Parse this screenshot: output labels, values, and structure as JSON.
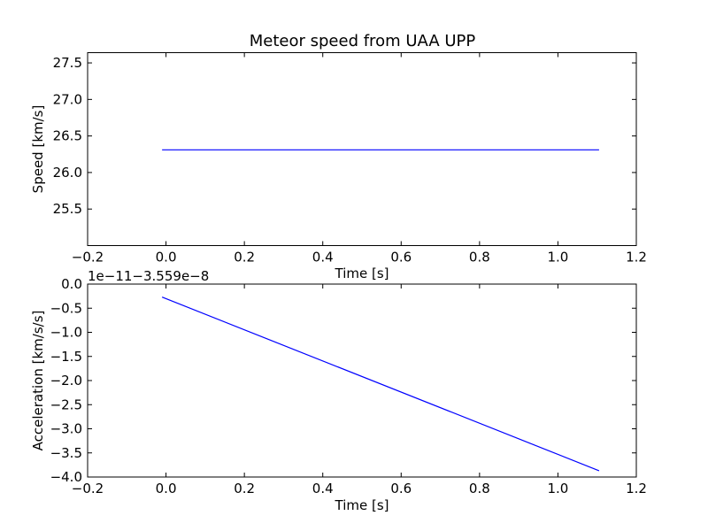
{
  "title": "Meteor speed from  UAA UPP",
  "chart_data": [
    {
      "type": "line",
      "title": "Meteor speed from  UAA UPP",
      "xlabel": "Time [s]",
      "ylabel": "Speed [km/s]",
      "xlim": [
        -0.2,
        1.2
      ],
      "ylim": [
        25.0,
        27.64
      ],
      "xticks": [
        -0.2,
        0.0,
        0.2,
        0.4,
        0.6,
        0.8,
        1.0,
        1.2
      ],
      "xtick_labels": [
        "−0.2",
        "0.0",
        "0.2",
        "0.4",
        "0.6",
        "0.8",
        "1.0",
        "1.2"
      ],
      "yticks": [
        25.5,
        26.0,
        26.5,
        27.0,
        27.5
      ],
      "ytick_labels": [
        "25.5",
        "26.0",
        "26.5",
        "27.0",
        "27.5"
      ],
      "grid": false,
      "series": [
        {
          "color": "#0000ff",
          "x": [
            -0.01,
            1.105
          ],
          "y": [
            26.31,
            26.31
          ]
        }
      ]
    },
    {
      "type": "line",
      "xlabel": "Time [s]",
      "ylabel": "Acceleration [km/s/s]",
      "y_offset_text": "1e−11−3.559e−8",
      "xlim": [
        -0.2,
        1.2
      ],
      "ylim": [
        -4.0,
        0.0
      ],
      "xticks": [
        -0.2,
        0.0,
        0.2,
        0.4,
        0.6,
        0.8,
        1.0,
        1.2
      ],
      "xtick_labels": [
        "−0.2",
        "0.0",
        "0.2",
        "0.4",
        "0.6",
        "0.8",
        "1.0",
        "1.2"
      ],
      "yticks": [
        -4.0,
        -3.5,
        -3.0,
        -2.5,
        -2.0,
        -1.5,
        -1.0,
        -0.5,
        0.0
      ],
      "ytick_labels": [
        "−4.0",
        "−3.5",
        "−3.0",
        "−2.5",
        "−2.0",
        "−1.5",
        "−1.0",
        "−0.5",
        "0.0"
      ],
      "grid": false,
      "series": [
        {
          "color": "#0000ff",
          "x": [
            -0.01,
            1.105
          ],
          "y": [
            -0.27,
            -3.87
          ]
        }
      ]
    }
  ]
}
